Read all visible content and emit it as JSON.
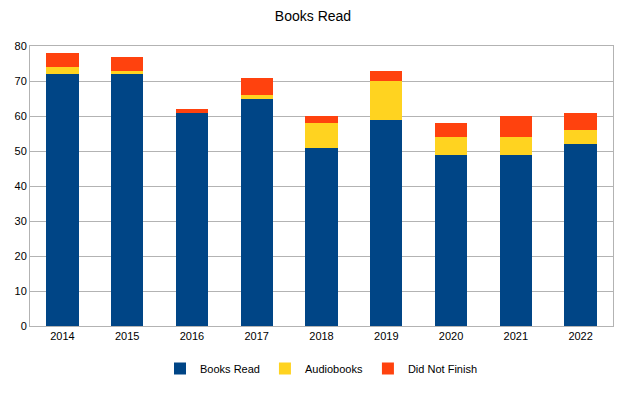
{
  "chart_data": {
    "type": "bar",
    "title": "Books Read",
    "stacked": true,
    "grid": true,
    "legend": "bottom",
    "categories": [
      "2014",
      "2015",
      "2016",
      "2017",
      "2018",
      "2019",
      "2020",
      "2021",
      "2022"
    ],
    "series": [
      {
        "name": "Books Read",
        "color": "#004586",
        "values": [
          72,
          72,
          61,
          65,
          51,
          59,
          49,
          49,
          52
        ]
      },
      {
        "name": "Audiobooks",
        "color": "#ffd320",
        "values": [
          2,
          1,
          0,
          1,
          7,
          11,
          5,
          5,
          4
        ]
      },
      {
        "name": "Did Not Finish",
        "color": "#ff420e",
        "values": [
          4,
          4,
          1,
          5,
          2,
          3,
          4,
          6,
          5
        ]
      }
    ],
    "ylim": [
      0,
      80
    ],
    "yticks": [
      0,
      10,
      20,
      30,
      40,
      50,
      60,
      70,
      80
    ]
  }
}
